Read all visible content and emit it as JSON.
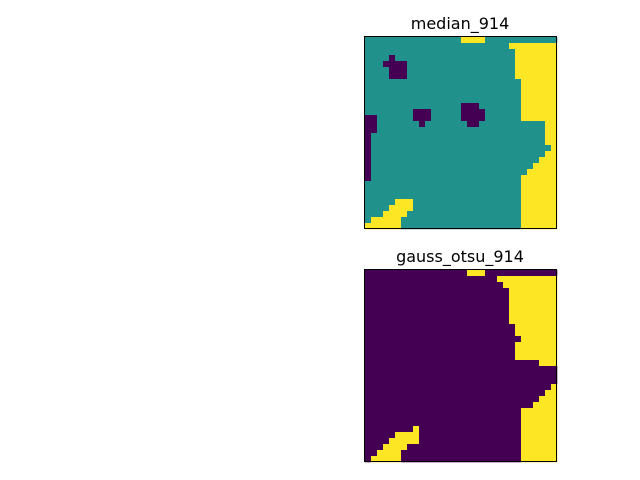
{
  "chart_data": [
    {
      "type": "heatmap",
      "title": "median_914",
      "xticks": [],
      "yticks": [],
      "grid": false,
      "colormap": "viridis",
      "class_colors": {
        "0": "#440154",
        "1": "#21918c",
        "2": "#fde725"
      },
      "rows": 32,
      "cols": 32,
      "regions": {
        "yellow_top_right": [
          [
            0,
            16,
            19
          ],
          [
            1,
            24,
            31
          ],
          [
            2,
            25,
            31
          ],
          [
            3,
            25,
            31
          ],
          [
            4,
            25,
            31
          ],
          [
            5,
            25,
            31
          ],
          [
            6,
            25,
            31
          ],
          [
            7,
            26,
            31
          ],
          [
            8,
            26,
            31
          ],
          [
            9,
            26,
            31
          ],
          [
            10,
            26,
            31
          ],
          [
            11,
            26,
            31
          ],
          [
            12,
            26,
            31
          ],
          [
            13,
            26,
            31
          ],
          [
            14,
            30,
            31
          ],
          [
            15,
            30,
            31
          ],
          [
            16,
            30,
            31
          ],
          [
            17,
            30,
            31
          ],
          [
            18,
            31,
            31
          ]
        ],
        "yellow_bottom_right": [
          [
            19,
            30,
            31
          ],
          [
            20,
            29,
            31
          ],
          [
            21,
            28,
            31
          ],
          [
            22,
            27,
            31
          ],
          [
            23,
            26,
            31
          ],
          [
            24,
            26,
            31
          ],
          [
            25,
            26,
            31
          ],
          [
            26,
            26,
            31
          ],
          [
            27,
            26,
            31
          ],
          [
            28,
            26,
            31
          ],
          [
            29,
            26,
            31
          ],
          [
            30,
            26,
            31
          ],
          [
            31,
            26,
            31
          ]
        ],
        "yellow_bottom_left": [
          [
            27,
            5,
            7
          ],
          [
            28,
            4,
            7
          ],
          [
            29,
            3,
            6
          ],
          [
            30,
            1,
            5
          ],
          [
            31,
            0,
            5
          ]
        ],
        "dark_blobs": [
          [
            3,
            4,
            4
          ],
          [
            4,
            3,
            6
          ],
          [
            5,
            4,
            6
          ],
          [
            6,
            4,
            6
          ],
          [
            12,
            8,
            10
          ],
          [
            13,
            8,
            10
          ],
          [
            14,
            9,
            9
          ],
          [
            11,
            16,
            18
          ],
          [
            12,
            16,
            19
          ],
          [
            13,
            16,
            19
          ],
          [
            14,
            17,
            18
          ],
          [
            13,
            0,
            1
          ],
          [
            14,
            0,
            1
          ],
          [
            15,
            0,
            1
          ],
          [
            16,
            0,
            0
          ],
          [
            17,
            0,
            0
          ],
          [
            18,
            0,
            0
          ],
          [
            19,
            0,
            0
          ],
          [
            20,
            0,
            0
          ],
          [
            21,
            0,
            0
          ],
          [
            22,
            0,
            0
          ],
          [
            23,
            0,
            0
          ]
        ]
      }
    },
    {
      "type": "heatmap",
      "title": "gauss_otsu_914",
      "xticks": [],
      "yticks": [],
      "grid": false,
      "colormap": "viridis",
      "class_colors": {
        "0": "#440154",
        "1": "#fde725"
      },
      "rows": 32,
      "cols": 32,
      "regions": {
        "yellow_top": [
          [
            0,
            17,
            19
          ],
          [
            1,
            22,
            31
          ],
          [
            2,
            23,
            31
          ],
          [
            3,
            24,
            31
          ],
          [
            4,
            24,
            31
          ],
          [
            5,
            24,
            31
          ],
          [
            6,
            24,
            31
          ],
          [
            7,
            24,
            31
          ],
          [
            8,
            24,
            31
          ],
          [
            9,
            25,
            31
          ],
          [
            10,
            25,
            31
          ],
          [
            11,
            26,
            31
          ],
          [
            12,
            25,
            31
          ],
          [
            13,
            25,
            31
          ],
          [
            14,
            25,
            31
          ],
          [
            15,
            29,
            31
          ]
        ],
        "yellow_bottom_right": [
          [
            19,
            31,
            31
          ],
          [
            20,
            30,
            31
          ],
          [
            21,
            29,
            31
          ],
          [
            22,
            28,
            31
          ],
          [
            23,
            26,
            31
          ],
          [
            24,
            26,
            31
          ],
          [
            25,
            26,
            31
          ],
          [
            26,
            26,
            31
          ],
          [
            27,
            26,
            31
          ],
          [
            28,
            26,
            31
          ],
          [
            29,
            26,
            31
          ],
          [
            30,
            26,
            31
          ],
          [
            31,
            26,
            31
          ]
        ],
        "yellow_bottom_left": [
          [
            26,
            8,
            8
          ],
          [
            27,
            5,
            8
          ],
          [
            28,
            4,
            8
          ],
          [
            29,
            3,
            6
          ],
          [
            30,
            2,
            5
          ],
          [
            31,
            1,
            5
          ]
        ]
      }
    }
  ]
}
